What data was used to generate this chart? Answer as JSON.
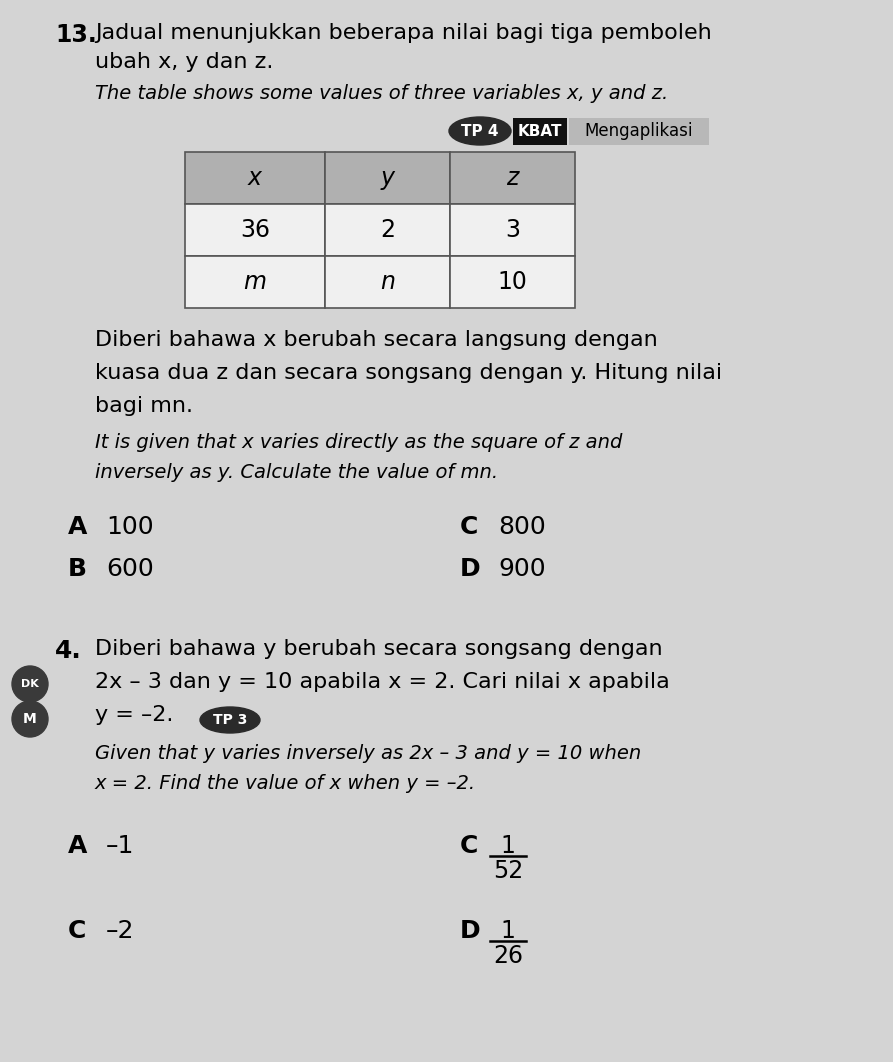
{
  "bg_color": "#c8c8c8",
  "page_bg": "#e8e8e8",
  "q13_number": "13.",
  "q13_malay_line1": "Jadual menunjukkan beberapa nilai bagi tiga pemboleh",
  "q13_malay_line2": "ubah x, y dan z.",
  "q13_english": "The table shows some values of three variables x, y and z.",
  "tp_label": "TP 4",
  "kbat_label": "KBAT",
  "mengaplikasi_label": "Mengaplikasi",
  "table_headers": [
    "x",
    "y",
    "z"
  ],
  "table_row1": [
    "36",
    "2",
    "3"
  ],
  "table_row2": [
    "m",
    "n",
    "10"
  ],
  "q13_malay_body": [
    "Diberi bahawa x berubah secara langsung dengan",
    "kuasa dua z dan secara songsang dengan y. Hitung nilai",
    "bagi mn."
  ],
  "q13_english_body": [
    "It is given that x varies directly as the square of z and",
    "inversely as y. Calculate the value of mn."
  ],
  "q13_optA": "A",
  "q13_valA": "100",
  "q13_optB": "B",
  "q13_valB": "600",
  "q13_optC": "C",
  "q13_valC": "800",
  "q13_optD": "D",
  "q13_valD": "900",
  "q14_number": "4.",
  "q14_malay_body": [
    "Diberi bahawa y berubah secara songsang dengan",
    "2x – 3 dan y = 10 apabila x = 2. Cari nilai x apabila",
    "y = –2."
  ],
  "tp3_label": "TP 3",
  "q14_english_body": [
    "Given that y varies inversely as 2x – 3 and y = 10 when",
    "x = 2. Find the value of x when y = –2."
  ],
  "q14_optA": "A",
  "q14_valA": "–1",
  "q14_optB": "C",
  "q14_valB": "–2",
  "q14_optC": "C",
  "q14_numC": "1",
  "q14_denC": "52",
  "q14_optD": "D",
  "q14_numD": "1",
  "q14_denD": "26"
}
